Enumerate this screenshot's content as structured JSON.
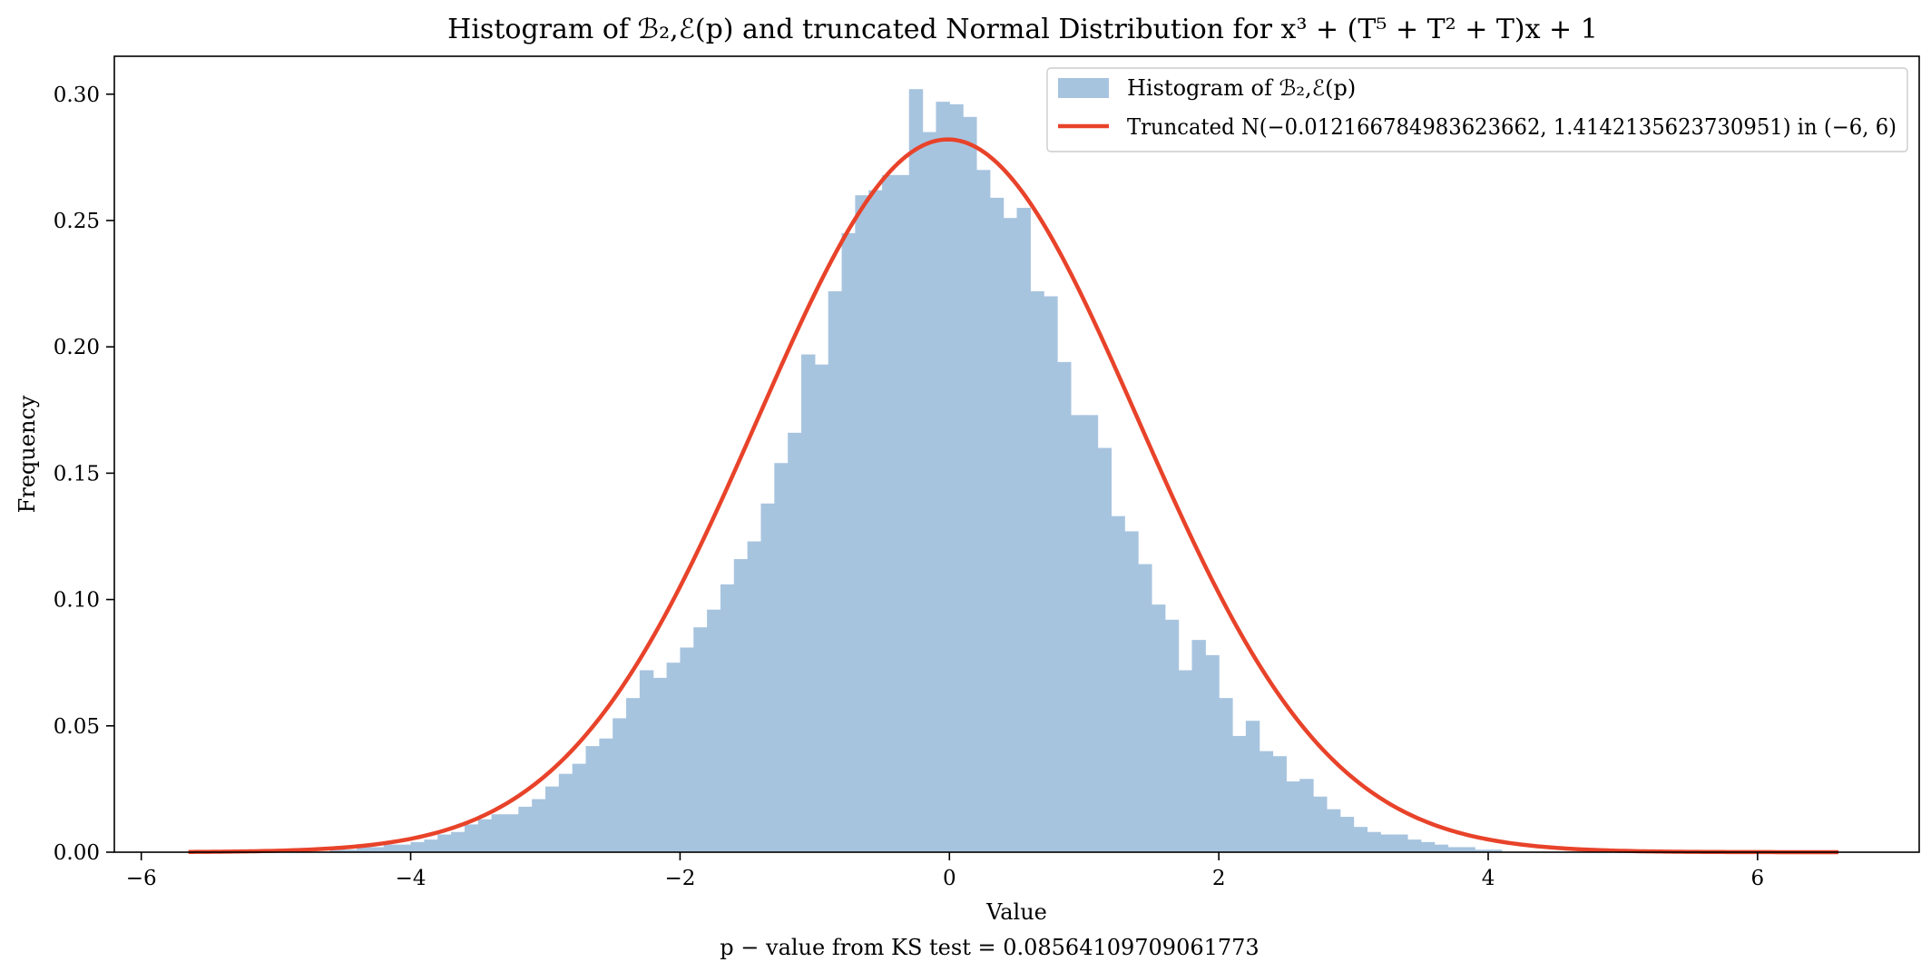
{
  "chart_data": {
    "type": "bar",
    "title": "Histogram of ℬ₂,ℰ(p) and truncated Normal Distribution for x³ + (T⁵ + T² + T)x + 1",
    "xlabel": "Value",
    "ylabel": "Frequency",
    "footer": "p − value from KS test  = 0.08564109709061773",
    "xlim": [
      -6.2,
      7.2
    ],
    "ylim": [
      0,
      0.315
    ],
    "xticks": [
      -6,
      -4,
      -2,
      0,
      2,
      4,
      6
    ],
    "xtick_labels": [
      "−6",
      "−4",
      "−2",
      "0",
      "2",
      "4",
      "6"
    ],
    "yticks": [
      0.0,
      0.05,
      0.1,
      0.15,
      0.2,
      0.25,
      0.3
    ],
    "ytick_labels": [
      "0.00",
      "0.05",
      "0.10",
      "0.15",
      "0.20",
      "0.25",
      "0.30"
    ],
    "grid": false,
    "legend_position": "top-right",
    "legend": [
      {
        "label": "Histogram of ℬ₂,ℰ(p)",
        "kind": "patch",
        "color": "#a7c4df"
      },
      {
        "label": "Truncated N(−0.012166784983623662, 1.4142135623730951) in (−6, 6)",
        "kind": "line",
        "color": "#e8432a"
      }
    ],
    "histogram": {
      "name": "Histogram of ℬ₂,ℰ(p)",
      "color": "#a7c4df",
      "bin_start": -4.6,
      "bin_width": 0.1,
      "values": [
        0.001,
        0.001,
        0.002,
        0.002,
        0.003,
        0.003,
        0.004,
        0.005,
        0.007,
        0.008,
        0.011,
        0.013,
        0.015,
        0.015,
        0.018,
        0.021,
        0.026,
        0.031,
        0.035,
        0.042,
        0.045,
        0.053,
        0.061,
        0.072,
        0.069,
        0.075,
        0.081,
        0.089,
        0.096,
        0.106,
        0.116,
        0.123,
        0.138,
        0.154,
        0.166,
        0.197,
        0.193,
        0.222,
        0.245,
        0.26,
        0.262,
        0.268,
        0.268,
        0.302,
        0.285,
        0.297,
        0.296,
        0.291,
        0.27,
        0.259,
        0.251,
        0.255,
        0.222,
        0.22,
        0.194,
        0.173,
        0.173,
        0.16,
        0.133,
        0.127,
        0.114,
        0.098,
        0.092,
        0.072,
        0.084,
        0.078,
        0.061,
        0.046,
        0.052,
        0.04,
        0.038,
        0.028,
        0.029,
        0.022,
        0.017,
        0.014,
        0.01,
        0.008,
        0.007,
        0.007,
        0.005,
        0.004,
        0.003,
        0.002,
        0.002,
        0.001,
        0.001
      ]
    },
    "series": [
      {
        "name": "Truncated N(−0.012166784983623662, 1.4142135623730951) in (−6, 6)",
        "type": "line",
        "color": "#e8432a",
        "mean": -0.012166784983623662,
        "std": 1.4142135623730951,
        "x_range": [
          -5.65,
          6.6
        ]
      }
    ]
  }
}
